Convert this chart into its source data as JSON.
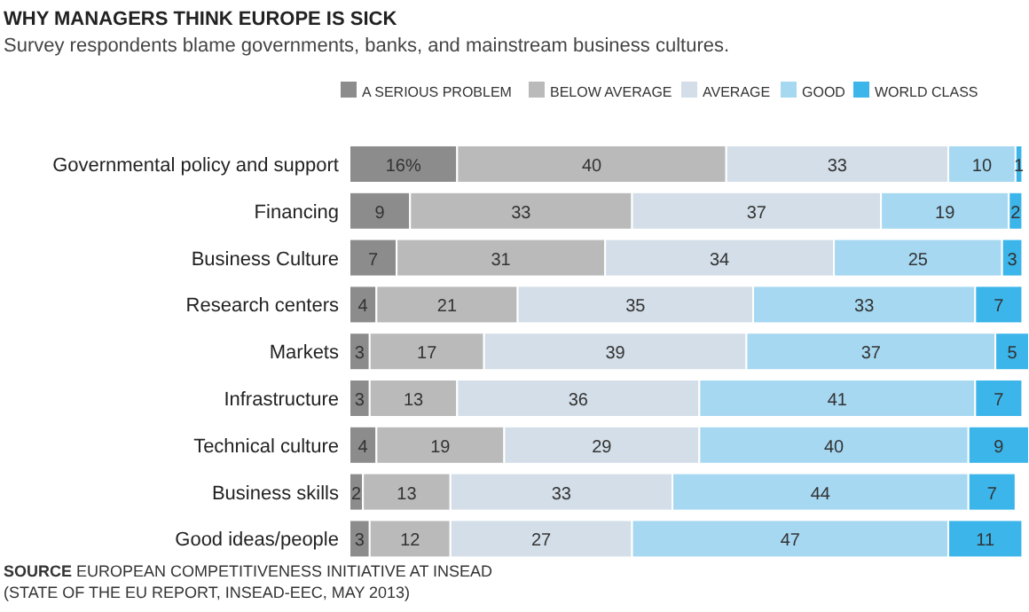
{
  "chart_data": {
    "type": "bar",
    "orientation": "horizontal",
    "stacked": true,
    "title": "WHY MANAGERS THINK EUROPE IS SICK",
    "subtitle": "Survey respondents blame governments, banks, and mainstream business cultures.",
    "categories": [
      "Governmental policy and support",
      "Financing",
      "Business Culture",
      "Research centers",
      "Markets",
      "Infrastructure",
      "Technical culture",
      "Business skills",
      "Good ideas/people"
    ],
    "series": [
      {
        "name": "A SERIOUS PROBLEM",
        "color": "#8c8c8c",
        "values": [
          16,
          9,
          7,
          4,
          3,
          3,
          4,
          2,
          3
        ],
        "value_labels": [
          "16%",
          "9",
          "7",
          "4",
          "3",
          "3",
          "4",
          "2",
          "3"
        ]
      },
      {
        "name": "BELOW AVERAGE",
        "color": "#bababa",
        "values": [
          40,
          33,
          31,
          21,
          17,
          13,
          19,
          13,
          12
        ],
        "value_labels": [
          "40",
          "33",
          "31",
          "21",
          "17",
          "13",
          "19",
          "13",
          "12"
        ]
      },
      {
        "name": "AVERAGE",
        "color": "#d3dee8",
        "values": [
          33,
          37,
          34,
          35,
          39,
          36,
          29,
          33,
          27
        ],
        "value_labels": [
          "33",
          "37",
          "34",
          "35",
          "39",
          "36",
          "29",
          "33",
          "27"
        ]
      },
      {
        "name": "GOOD",
        "color": "#a6d8f2",
        "values": [
          10,
          19,
          25,
          33,
          37,
          41,
          40,
          44,
          47
        ],
        "value_labels": [
          "10",
          "19",
          "25",
          "33",
          "37",
          "41",
          "40",
          "44",
          "47"
        ]
      },
      {
        "name": "WORLD CLASS",
        "color": "#3bb5ea",
        "values": [
          1,
          2,
          3,
          7,
          5,
          7,
          9,
          7,
          11
        ],
        "value_labels": [
          "1",
          "2",
          "3",
          "7",
          "5",
          "7",
          "9",
          "7",
          "11"
        ]
      }
    ],
    "xlim": [
      0,
      101
    ],
    "tick_labels": "y",
    "legend": "top",
    "grid": false,
    "annotations": [
      "SOURCE EUROPEAN COMPETITIVENESS INITIATIVE AT INSEAD",
      "(STATE OF THE EU REPORT, INSEAD-EEC, MAY 2013)"
    ]
  }
}
